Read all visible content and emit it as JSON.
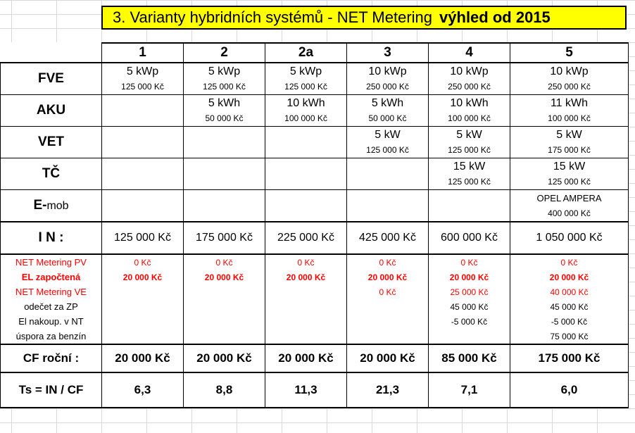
{
  "title": {
    "main": "3. Varianty hybridních systémů - NET Metering",
    "bold": "výhled od  2015"
  },
  "columns": [
    "1",
    "2",
    "2a",
    "3",
    "4",
    "5"
  ],
  "rows": {
    "fve": {
      "label": "FVE",
      "top": [
        "5 kWp",
        "5 kWp",
        "5 kWp",
        "10 kWp",
        "10 kWp",
        "10 kWp"
      ],
      "bottom": [
        "125 000 Kč",
        "125 000 Kč",
        "125 000 Kč",
        "250 000 Kč",
        "250 000 Kč",
        "250 000 Kč"
      ]
    },
    "aku": {
      "label": "AKU",
      "top": [
        "",
        "5 kWh",
        "10 kWh",
        "5 kWh",
        "10 kWh",
        "11 kWh"
      ],
      "bottom": [
        "",
        "50 000 Kč",
        "100 000 Kč",
        "50 000 Kč",
        "100 000 Kč",
        "100 000 Kč"
      ]
    },
    "vet": {
      "label": "VET",
      "top": [
        "",
        "",
        "",
        "5 kW",
        "5 kW",
        "5 kW"
      ],
      "bottom": [
        "",
        "",
        "",
        "125 000 Kč",
        "125 000 Kč",
        "175 000 Kč"
      ]
    },
    "tc": {
      "label": "TČ",
      "top": [
        "",
        "",
        "",
        "",
        "15 kW",
        "15 kW"
      ],
      "bottom": [
        "",
        "",
        "",
        "",
        "125 000 Kč",
        "125 000 Kč"
      ]
    },
    "emob": {
      "label_bold": "E-",
      "label_normal": "mob",
      "top": [
        "",
        "",
        "",
        "",
        "",
        "OPEL AMPERA"
      ],
      "bottom": [
        "",
        "",
        "",
        "",
        "",
        "400 000 Kč"
      ]
    },
    "in": {
      "label": "I N :",
      "values": [
        "125 000 Kč",
        "175 000 Kč",
        "225 000 Kč",
        "425 000 Kč",
        "600 000 Kč",
        "1 050 000 Kč"
      ]
    },
    "nm_pv": {
      "label": "NET Metering PV",
      "values": [
        "0 Kč",
        "0 Kč",
        "0 Kč",
        "0 Kč",
        "0 Kč",
        "0 Kč"
      ]
    },
    "el_zap": {
      "label": "EL započtená",
      "values": [
        "20 000 Kč",
        "20 000 Kč",
        "20 000 Kč",
        "20 000 Kč",
        "20 000 Kč",
        "20 000 Kč"
      ]
    },
    "nm_ve": {
      "label": "NET Metering VE",
      "values": [
        "",
        "",
        "",
        "0 Kč",
        "25 000 Kč",
        "40 000 Kč"
      ]
    },
    "odecet": {
      "label": "odečet za  ZP",
      "values": [
        "",
        "",
        "",
        "",
        "45 000 Kč",
        "45 000 Kč"
      ]
    },
    "el_nakoup": {
      "label": "El nakoup. v NT",
      "values": [
        "",
        "",
        "",
        "",
        "-5 000 Kč",
        "-5 000 Kč"
      ]
    },
    "uspora": {
      "label": "úspora za benzín",
      "values": [
        "",
        "",
        "",
        "",
        "",
        "75 000 Kč"
      ]
    },
    "cf": {
      "label": "CF roční :",
      "values": [
        "20 000 Kč",
        "20 000 Kč",
        "20 000 Kč",
        "20 000 Kč",
        "85 000 Kč",
        "175 000 Kč"
      ]
    },
    "ts": {
      "label": "Ts = IN / CF",
      "values": [
        "6,3",
        "8,8",
        "11,3",
        "21,3",
        "7,1",
        "6,0"
      ]
    }
  },
  "colors": {
    "title_bg": "#ffff00",
    "red_text": "#ff0000",
    "gridline": "#d9d9d9"
  }
}
